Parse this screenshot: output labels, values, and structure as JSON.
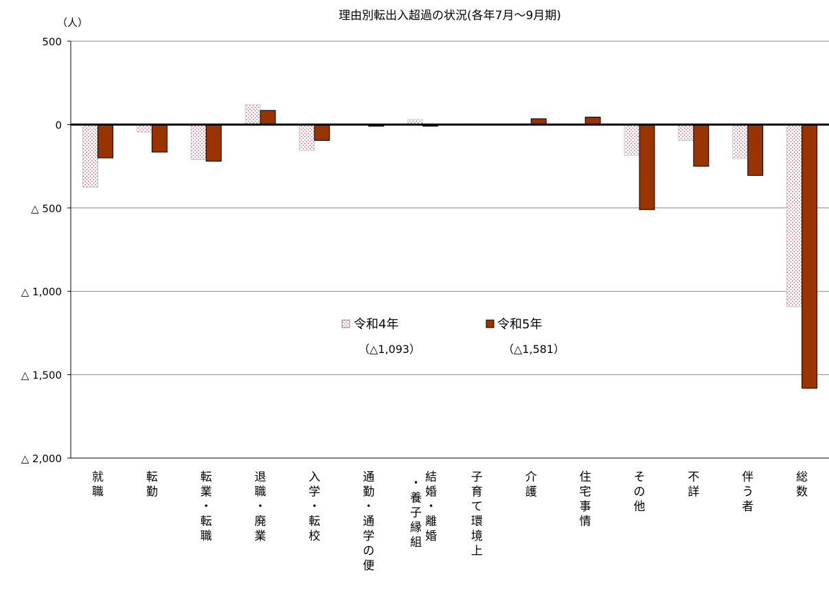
{
  "chart_data": {
    "type": "bar",
    "title": "理由別転出入超過の状況(各年7月～9月期)",
    "unit_label": "（人）",
    "ylim": [
      -2000,
      500
    ],
    "yticks": [
      {
        "value": 500,
        "label": "500"
      },
      {
        "value": 0,
        "label": "0"
      },
      {
        "value": -500,
        "label": "△ 500"
      },
      {
        "value": -1000,
        "label": "△ 1,000"
      },
      {
        "value": -1500,
        "label": "△ 1,500"
      },
      {
        "value": -2000,
        "label": "△ 2,000"
      }
    ],
    "grid": true,
    "categories": [
      {
        "label": "就職",
        "lines": [
          "就",
          "職"
        ]
      },
      {
        "label": "転勤",
        "lines": [
          "転",
          "勤"
        ]
      },
      {
        "label": "転業・転職",
        "lines": [
          "転",
          "業",
          "・",
          "転",
          "職"
        ]
      },
      {
        "label": "退職・廃業",
        "lines": [
          "退",
          "職",
          "・",
          "廃",
          "業"
        ]
      },
      {
        "label": "入学・転校",
        "lines": [
          "入",
          "学",
          "・",
          "転",
          "校"
        ]
      },
      {
        "label": "通勤・通学の便",
        "lines": [
          "通",
          "勤",
          "・",
          "通",
          "学",
          "の",
          "便"
        ]
      },
      {
        "label": "結婚・離婚・養子縁組",
        "columns": [
          [
            "結",
            "婚",
            "・",
            "離",
            "婚"
          ],
          [
            "・",
            "養",
            "子",
            "縁",
            "組"
          ]
        ]
      },
      {
        "label": "子育て環境上",
        "lines": [
          "子",
          "育",
          "て",
          "環",
          "境",
          "上"
        ]
      },
      {
        "label": "介護",
        "lines": [
          "介",
          "護"
        ]
      },
      {
        "label": "住宅事情",
        "lines": [
          "住",
          "宅",
          "事",
          "情"
        ]
      },
      {
        "label": "その他",
        "lines": [
          "そ",
          "の",
          "他"
        ]
      },
      {
        "label": "不詳",
        "lines": [
          "不",
          "詳"
        ]
      },
      {
        "label": "伴う者",
        "lines": [
          "伴",
          "う",
          "者"
        ]
      },
      {
        "label": "総数",
        "lines": [
          "総",
          "数"
        ]
      }
    ],
    "series": [
      {
        "name": "令和4年",
        "total_label": "（△1,093）",
        "pattern": "dots",
        "color": "#c05878",
        "values": [
          -375,
          -45,
          -210,
          120,
          -155,
          0,
          30,
          5,
          5,
          -5,
          -185,
          -95,
          -205,
          -1093
        ]
      },
      {
        "name": "令和5年",
        "total_label": "（△1,581）",
        "pattern": "solid",
        "color": "#993300",
        "values": [
          -200,
          -165,
          -220,
          85,
          -95,
          -10,
          -10,
          0,
          35,
          45,
          -510,
          -250,
          -305,
          -1581
        ]
      }
    ],
    "legend_position": "center"
  }
}
